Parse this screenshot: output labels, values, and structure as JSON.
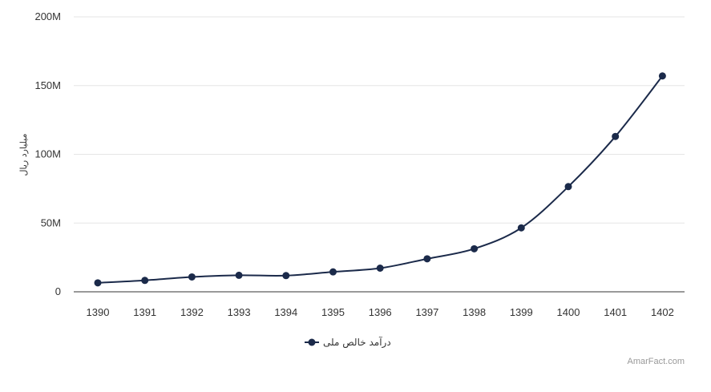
{
  "chart_data": {
    "type": "line",
    "ylabel": "میلیارد ریال",
    "categories": [
      "1390",
      "1391",
      "1392",
      "1393",
      "1394",
      "1395",
      "1396",
      "1397",
      "1398",
      "1399",
      "1400",
      "1401",
      "1402"
    ],
    "series": [
      {
        "name": "درآمد خالص ملی",
        "color": "#1b2a4a",
        "values": [
          6500000,
          8300000,
          10800000,
          12000000,
          11800000,
          14500000,
          17200000,
          24000000,
          31300000,
          46500000,
          76500000,
          113000000,
          157000000
        ]
      }
    ],
    "ylim": [
      0,
      200000000
    ],
    "yticks": [
      {
        "value": 0,
        "label": "0"
      },
      {
        "value": 50000000,
        "label": "50M"
      },
      {
        "value": 100000000,
        "label": "100M"
      },
      {
        "value": 150000000,
        "label": "150M"
      },
      {
        "value": 200000000,
        "label": "200M"
      }
    ],
    "grid": true,
    "legend_position": "bottom-center"
  },
  "credit": "AmarFact.com"
}
